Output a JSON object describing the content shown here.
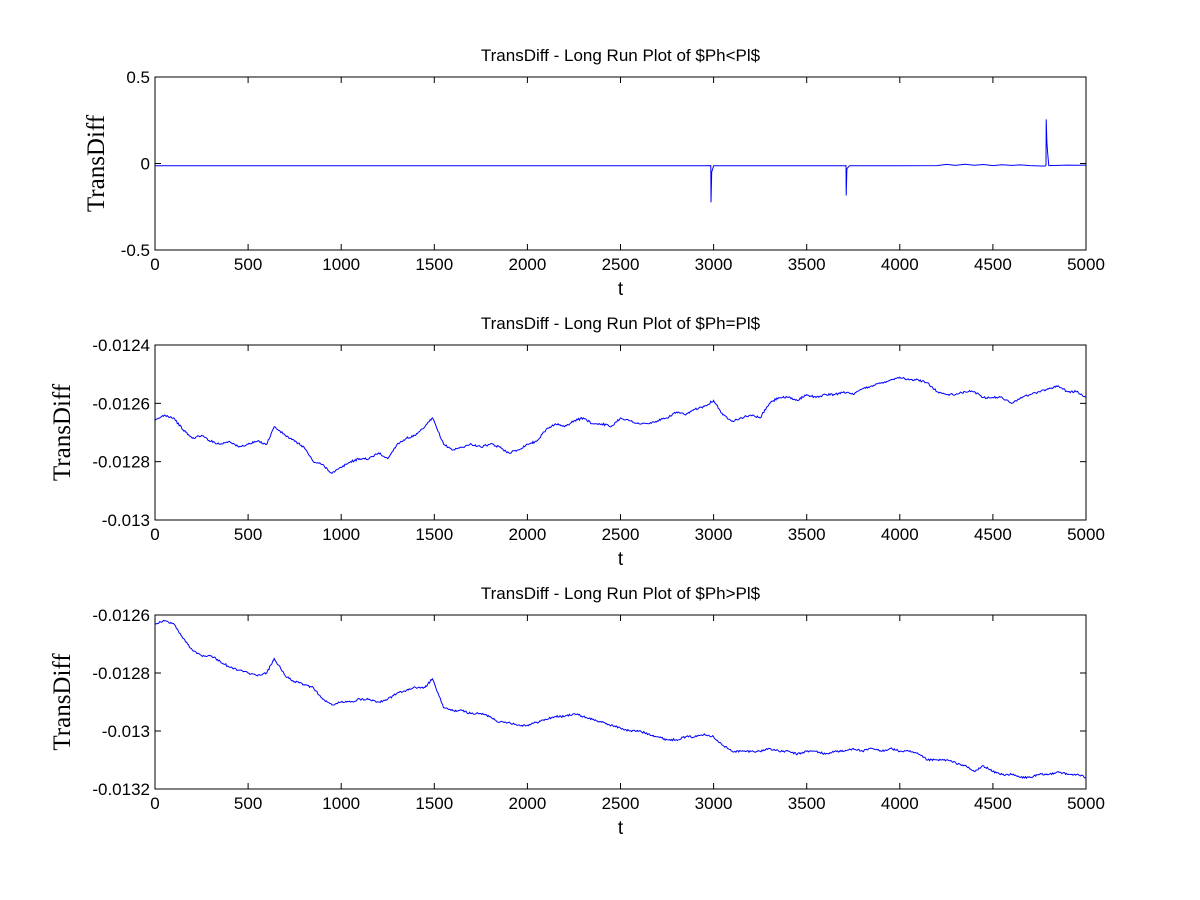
{
  "colors": {
    "background": "#ffffff",
    "axes": "#000000",
    "series": "#0000ff"
  },
  "chart_data": [
    {
      "type": "line",
      "title": "TransDiff - Long Run Plot of $Ph<Pl$",
      "xlabel": "t",
      "ylabel": "TransDiff",
      "xlim": [
        0,
        5000
      ],
      "ylim": [
        -0.5,
        0.5
      ],
      "xticks": [
        "0",
        "500",
        "1000",
        "1500",
        "2000",
        "2500",
        "3000",
        "3500",
        "4000",
        "4500",
        "5000"
      ],
      "yticks": [
        "-0.5",
        "0",
        "0.5"
      ],
      "grid": false,
      "series": [
        {
          "color": "#0000ff",
          "x": [
            0,
            500,
            1000,
            1500,
            2000,
            2500,
            2950,
            2985,
            2986,
            2990,
            3000,
            3500,
            3700,
            3711,
            3712,
            3716,
            3730,
            4000,
            4200,
            4250,
            4300,
            4350,
            4400,
            4450,
            4500,
            4550,
            4600,
            4650,
            4700,
            4780,
            4785,
            4786,
            4790,
            4795,
            4800,
            4850,
            4900,
            4950,
            5000
          ],
          "y": [
            -0.0126,
            -0.0127,
            -0.0128,
            -0.0127,
            -0.0128,
            -0.0126,
            -0.0127,
            -0.012,
            -0.225,
            -0.05,
            -0.0127,
            -0.0125,
            -0.013,
            -0.012,
            -0.185,
            -0.03,
            -0.0125,
            -0.0126,
            -0.012,
            -0.005,
            -0.011,
            -0.004,
            -0.01,
            -0.006,
            -0.012,
            -0.007,
            -0.011,
            -0.008,
            -0.012,
            -0.015,
            -0.01,
            0.255,
            0.12,
            0.05,
            -0.012,
            -0.011,
            -0.009,
            -0.01,
            -0.009
          ]
        }
      ]
    },
    {
      "type": "line",
      "title": "TransDiff - Long Run Plot of $Ph=Pl$",
      "xlabel": "t",
      "ylabel": "TransDiff",
      "xlim": [
        0,
        5000
      ],
      "ylim": [
        -0.013,
        -0.0124
      ],
      "xticks": [
        "0",
        "500",
        "1000",
        "1500",
        "2000",
        "2500",
        "3000",
        "3500",
        "4000",
        "4500",
        "5000"
      ],
      "yticks": [
        "-0.013",
        "-0.0128",
        "-0.0126",
        "-0.0124"
      ],
      "grid": false,
      "series": [
        {
          "color": "#0000ff",
          "x": [
            0,
            50,
            100,
            150,
            200,
            250,
            300,
            350,
            400,
            450,
            500,
            550,
            600,
            640,
            700,
            750,
            800,
            850,
            900,
            950,
            1000,
            1050,
            1100,
            1150,
            1200,
            1250,
            1300,
            1350,
            1400,
            1450,
            1490,
            1550,
            1600,
            1650,
            1700,
            1750,
            1800,
            1850,
            1900,
            1950,
            2000,
            2050,
            2100,
            2150,
            2200,
            2250,
            2300,
            2350,
            2400,
            2450,
            2500,
            2550,
            2600,
            2650,
            2700,
            2750,
            2800,
            2850,
            2900,
            2950,
            3000,
            3050,
            3100,
            3150,
            3200,
            3250,
            3300,
            3350,
            3400,
            3450,
            3500,
            3550,
            3600,
            3650,
            3700,
            3750,
            3800,
            3850,
            3900,
            3950,
            4000,
            4050,
            4100,
            4150,
            4200,
            4250,
            4300,
            4350,
            4400,
            4450,
            4500,
            4550,
            4600,
            4650,
            4700,
            4750,
            4800,
            4850,
            4900,
            4950,
            5000
          ],
          "y": [
            -0.01266,
            -0.01264,
            -0.01265,
            -0.01269,
            -0.01272,
            -0.01271,
            -0.01273,
            -0.01274,
            -0.01273,
            -0.01275,
            -0.01274,
            -0.01273,
            -0.01274,
            -0.01268,
            -0.01271,
            -0.01273,
            -0.01275,
            -0.0128,
            -0.01281,
            -0.01284,
            -0.01282,
            -0.0128,
            -0.01279,
            -0.01279,
            -0.01277,
            -0.01279,
            -0.01274,
            -0.01272,
            -0.01271,
            -0.01268,
            -0.01265,
            -0.01274,
            -0.01276,
            -0.01275,
            -0.01274,
            -0.01275,
            -0.01274,
            -0.01275,
            -0.01277,
            -0.01276,
            -0.01274,
            -0.01273,
            -0.01269,
            -0.01267,
            -0.01268,
            -0.01266,
            -0.01265,
            -0.01267,
            -0.01267,
            -0.01268,
            -0.01265,
            -0.01266,
            -0.01267,
            -0.01267,
            -0.01266,
            -0.01265,
            -0.01263,
            -0.01264,
            -0.01262,
            -0.01261,
            -0.01259,
            -0.01264,
            -0.01266,
            -0.01265,
            -0.01264,
            -0.01265,
            -0.0126,
            -0.01258,
            -0.01258,
            -0.01259,
            -0.01257,
            -0.01258,
            -0.01257,
            -0.01257,
            -0.01256,
            -0.01257,
            -0.01255,
            -0.01254,
            -0.01253,
            -0.01252,
            -0.01251,
            -0.01252,
            -0.01252,
            -0.01253,
            -0.01256,
            -0.01257,
            -0.01257,
            -0.01256,
            -0.01256,
            -0.01258,
            -0.01258,
            -0.01258,
            -0.0126,
            -0.01258,
            -0.01257,
            -0.01256,
            -0.01255,
            -0.01254,
            -0.01256,
            -0.01256,
            -0.01258
          ]
        }
      ]
    },
    {
      "type": "line",
      "title": "TransDiff - Long Run Plot of $Ph>Pl$",
      "xlabel": "t",
      "ylabel": "TransDiff",
      "xlim": [
        0,
        5000
      ],
      "ylim": [
        -0.0132,
        -0.0126
      ],
      "xticks": [
        "0",
        "500",
        "1000",
        "1500",
        "2000",
        "2500",
        "3000",
        "3500",
        "4000",
        "4500",
        "5000"
      ],
      "yticks": [
        "-0.0132",
        "-0.013",
        "-0.0128",
        "-0.0126"
      ],
      "grid": false,
      "series": [
        {
          "color": "#0000ff",
          "x": [
            0,
            50,
            100,
            150,
            200,
            250,
            300,
            350,
            400,
            450,
            500,
            550,
            600,
            640,
            700,
            750,
            800,
            850,
            900,
            950,
            1000,
            1050,
            1100,
            1150,
            1200,
            1250,
            1300,
            1350,
            1400,
            1450,
            1490,
            1550,
            1600,
            1650,
            1700,
            1750,
            1800,
            1850,
            1900,
            1950,
            2000,
            2050,
            2100,
            2150,
            2200,
            2250,
            2300,
            2350,
            2400,
            2450,
            2500,
            2550,
            2600,
            2650,
            2700,
            2750,
            2800,
            2850,
            2900,
            2950,
            3000,
            3050,
            3100,
            3150,
            3200,
            3250,
            3300,
            3350,
            3400,
            3450,
            3500,
            3550,
            3600,
            3650,
            3700,
            3750,
            3800,
            3850,
            3900,
            3950,
            4000,
            4050,
            4100,
            4150,
            4200,
            4250,
            4300,
            4350,
            4400,
            4450,
            4500,
            4550,
            4600,
            4650,
            4700,
            4750,
            4800,
            4850,
            4900,
            4950,
            5000
          ],
          "y": [
            -0.01263,
            -0.01262,
            -0.01263,
            -0.01268,
            -0.01272,
            -0.01274,
            -0.01274,
            -0.01276,
            -0.01278,
            -0.01279,
            -0.0128,
            -0.01281,
            -0.0128,
            -0.01275,
            -0.01281,
            -0.01283,
            -0.01284,
            -0.01285,
            -0.01289,
            -0.01291,
            -0.0129,
            -0.0129,
            -0.01289,
            -0.01289,
            -0.0129,
            -0.01289,
            -0.01287,
            -0.01286,
            -0.01285,
            -0.01285,
            -0.01282,
            -0.01292,
            -0.01293,
            -0.01293,
            -0.01294,
            -0.01294,
            -0.01295,
            -0.01297,
            -0.01297,
            -0.01298,
            -0.01298,
            -0.01297,
            -0.01296,
            -0.01295,
            -0.01295,
            -0.01294,
            -0.01295,
            -0.01296,
            -0.01297,
            -0.01298,
            -0.01299,
            -0.013,
            -0.013,
            -0.01301,
            -0.01302,
            -0.01303,
            -0.01303,
            -0.01302,
            -0.01302,
            -0.01301,
            -0.01302,
            -0.01305,
            -0.01307,
            -0.01307,
            -0.01307,
            -0.01307,
            -0.01306,
            -0.01307,
            -0.01307,
            -0.01308,
            -0.01307,
            -0.01307,
            -0.01308,
            -0.01307,
            -0.01307,
            -0.01306,
            -0.01307,
            -0.01306,
            -0.01307,
            -0.01306,
            -0.01307,
            -0.01307,
            -0.01308,
            -0.0131,
            -0.0131,
            -0.0131,
            -0.01311,
            -0.01312,
            -0.01314,
            -0.01312,
            -0.01314,
            -0.01315,
            -0.01315,
            -0.01316,
            -0.01316,
            -0.01315,
            -0.01315,
            -0.01314,
            -0.01315,
            -0.01315,
            -0.01316
          ]
        }
      ]
    }
  ]
}
